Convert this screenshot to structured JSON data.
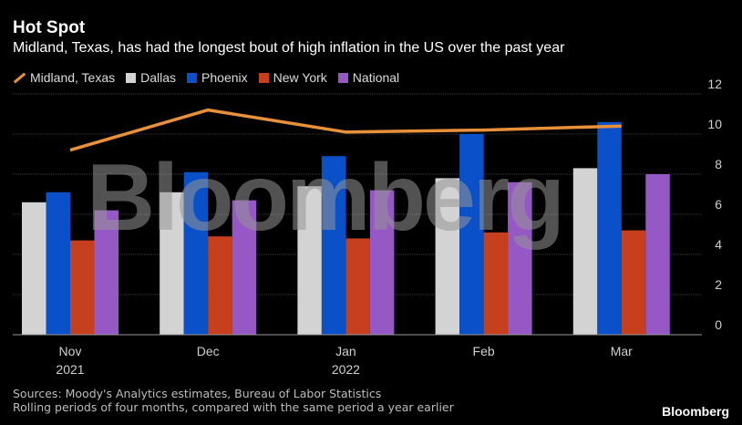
{
  "header": {
    "title": "Hot Spot",
    "subtitle": "Midland, Texas, has had the longest bout of high inflation in the US over the past year"
  },
  "legend": [
    {
      "label": "Midland, Texas",
      "color": "#e8903a",
      "kind": "line"
    },
    {
      "label": "Dallas",
      "color": "#d3d3d3",
      "kind": "box"
    },
    {
      "label": "Phoenix",
      "color": "#0a50c8",
      "kind": "box"
    },
    {
      "label": "New York",
      "color": "#c6401e",
      "kind": "box"
    },
    {
      "label": "National",
      "color": "#9558c4",
      "kind": "box"
    }
  ],
  "watermark": "Bloomberg",
  "footer": {
    "sources": "Sources: Moody's Analytics estimates, Bureau of Labor Statistics",
    "note": "Rolling periods of four months, compared with the same period a year earlier",
    "brand": "Bloomberg"
  },
  "chart_data": {
    "type": "bar",
    "categories": [
      "Nov",
      "Dec",
      "Jan",
      "Feb",
      "Mar"
    ],
    "category_sublabels": [
      "2021",
      "",
      "2022",
      "",
      ""
    ],
    "ylim": [
      0,
      12
    ],
    "yticks": [
      0,
      2,
      4,
      6,
      8,
      10,
      12
    ],
    "y_axis_position": "right",
    "grid": true,
    "series": [
      {
        "name": "Dallas",
        "kind": "bar",
        "color": "#d3d3d3",
        "values": [
          6.6,
          7.1,
          7.4,
          7.8,
          8.3
        ]
      },
      {
        "name": "Phoenix",
        "kind": "bar",
        "color": "#0a50c8",
        "values": [
          7.1,
          8.1,
          8.9,
          10.0,
          10.6
        ]
      },
      {
        "name": "New York",
        "kind": "bar",
        "color": "#c6401e",
        "values": [
          4.7,
          4.9,
          4.8,
          5.1,
          5.2
        ]
      },
      {
        "name": "National",
        "kind": "bar",
        "color": "#9558c4",
        "values": [
          6.2,
          6.7,
          7.2,
          7.6,
          8.0
        ]
      },
      {
        "name": "Midland, Texas",
        "kind": "line",
        "color": "#e8903a",
        "values": [
          9.2,
          11.2,
          10.1,
          10.2,
          10.4
        ]
      }
    ]
  }
}
